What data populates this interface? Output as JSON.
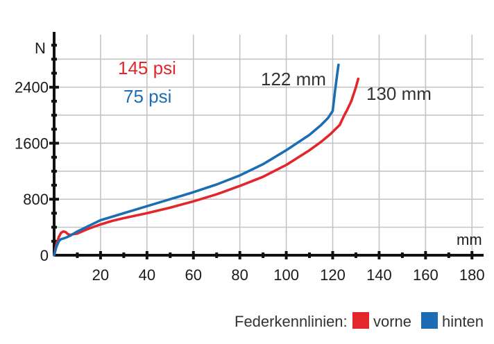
{
  "chart_data": {
    "type": "line",
    "xlabel": "mm",
    "ylabel": "N",
    "xlim": [
      0,
      185
    ],
    "ylim": [
      0,
      3150
    ],
    "x_ticks": [
      20,
      40,
      60,
      80,
      100,
      120,
      140,
      160,
      180
    ],
    "y_ticks": [
      0,
      800,
      1600,
      2400
    ],
    "x_tick_labels": [
      "20",
      "40",
      "60",
      "80",
      "100",
      "120",
      "140",
      "160",
      "180"
    ],
    "y_tick_labels": [
      "0",
      "800",
      "1600",
      "2400"
    ],
    "grid": true,
    "legend_position": "bottom-right",
    "legend_title": "Federkennlinien:",
    "series": [
      {
        "name": "vorne",
        "color": "#e3262b",
        "pressure_label": "145 psi",
        "end_label": "130 mm",
        "x": [
          0,
          1,
          2,
          3,
          4,
          5,
          6,
          7,
          8,
          10,
          12,
          15,
          20,
          25,
          30,
          40,
          50,
          60,
          70,
          80,
          90,
          100,
          110,
          115,
          119,
          123,
          125,
          126,
          128,
          130,
          131
        ],
        "y": [
          0,
          150,
          260,
          320,
          340,
          330,
          300,
          290,
          300,
          310,
          340,
          380,
          440,
          490,
          530,
          600,
          680,
          770,
          870,
          990,
          1120,
          1290,
          1500,
          1620,
          1730,
          1860,
          2000,
          2060,
          2200,
          2400,
          2520
        ]
      },
      {
        "name": "hinten",
        "color": "#1d6db5",
        "pressure_label": "75 psi",
        "end_label": "122 mm",
        "x": [
          0,
          1,
          2,
          3,
          5,
          7,
          10,
          15,
          20,
          25,
          30,
          40,
          50,
          60,
          70,
          80,
          90,
          100,
          110,
          115,
          118,
          120,
          121,
          122,
          122.5
        ],
        "y": [
          0,
          120,
          200,
          230,
          250,
          280,
          340,
          420,
          500,
          550,
          600,
          700,
          800,
          900,
          1010,
          1140,
          1300,
          1500,
          1720,
          1860,
          1960,
          2060,
          2350,
          2600,
          2720
        ]
      }
    ]
  }
}
